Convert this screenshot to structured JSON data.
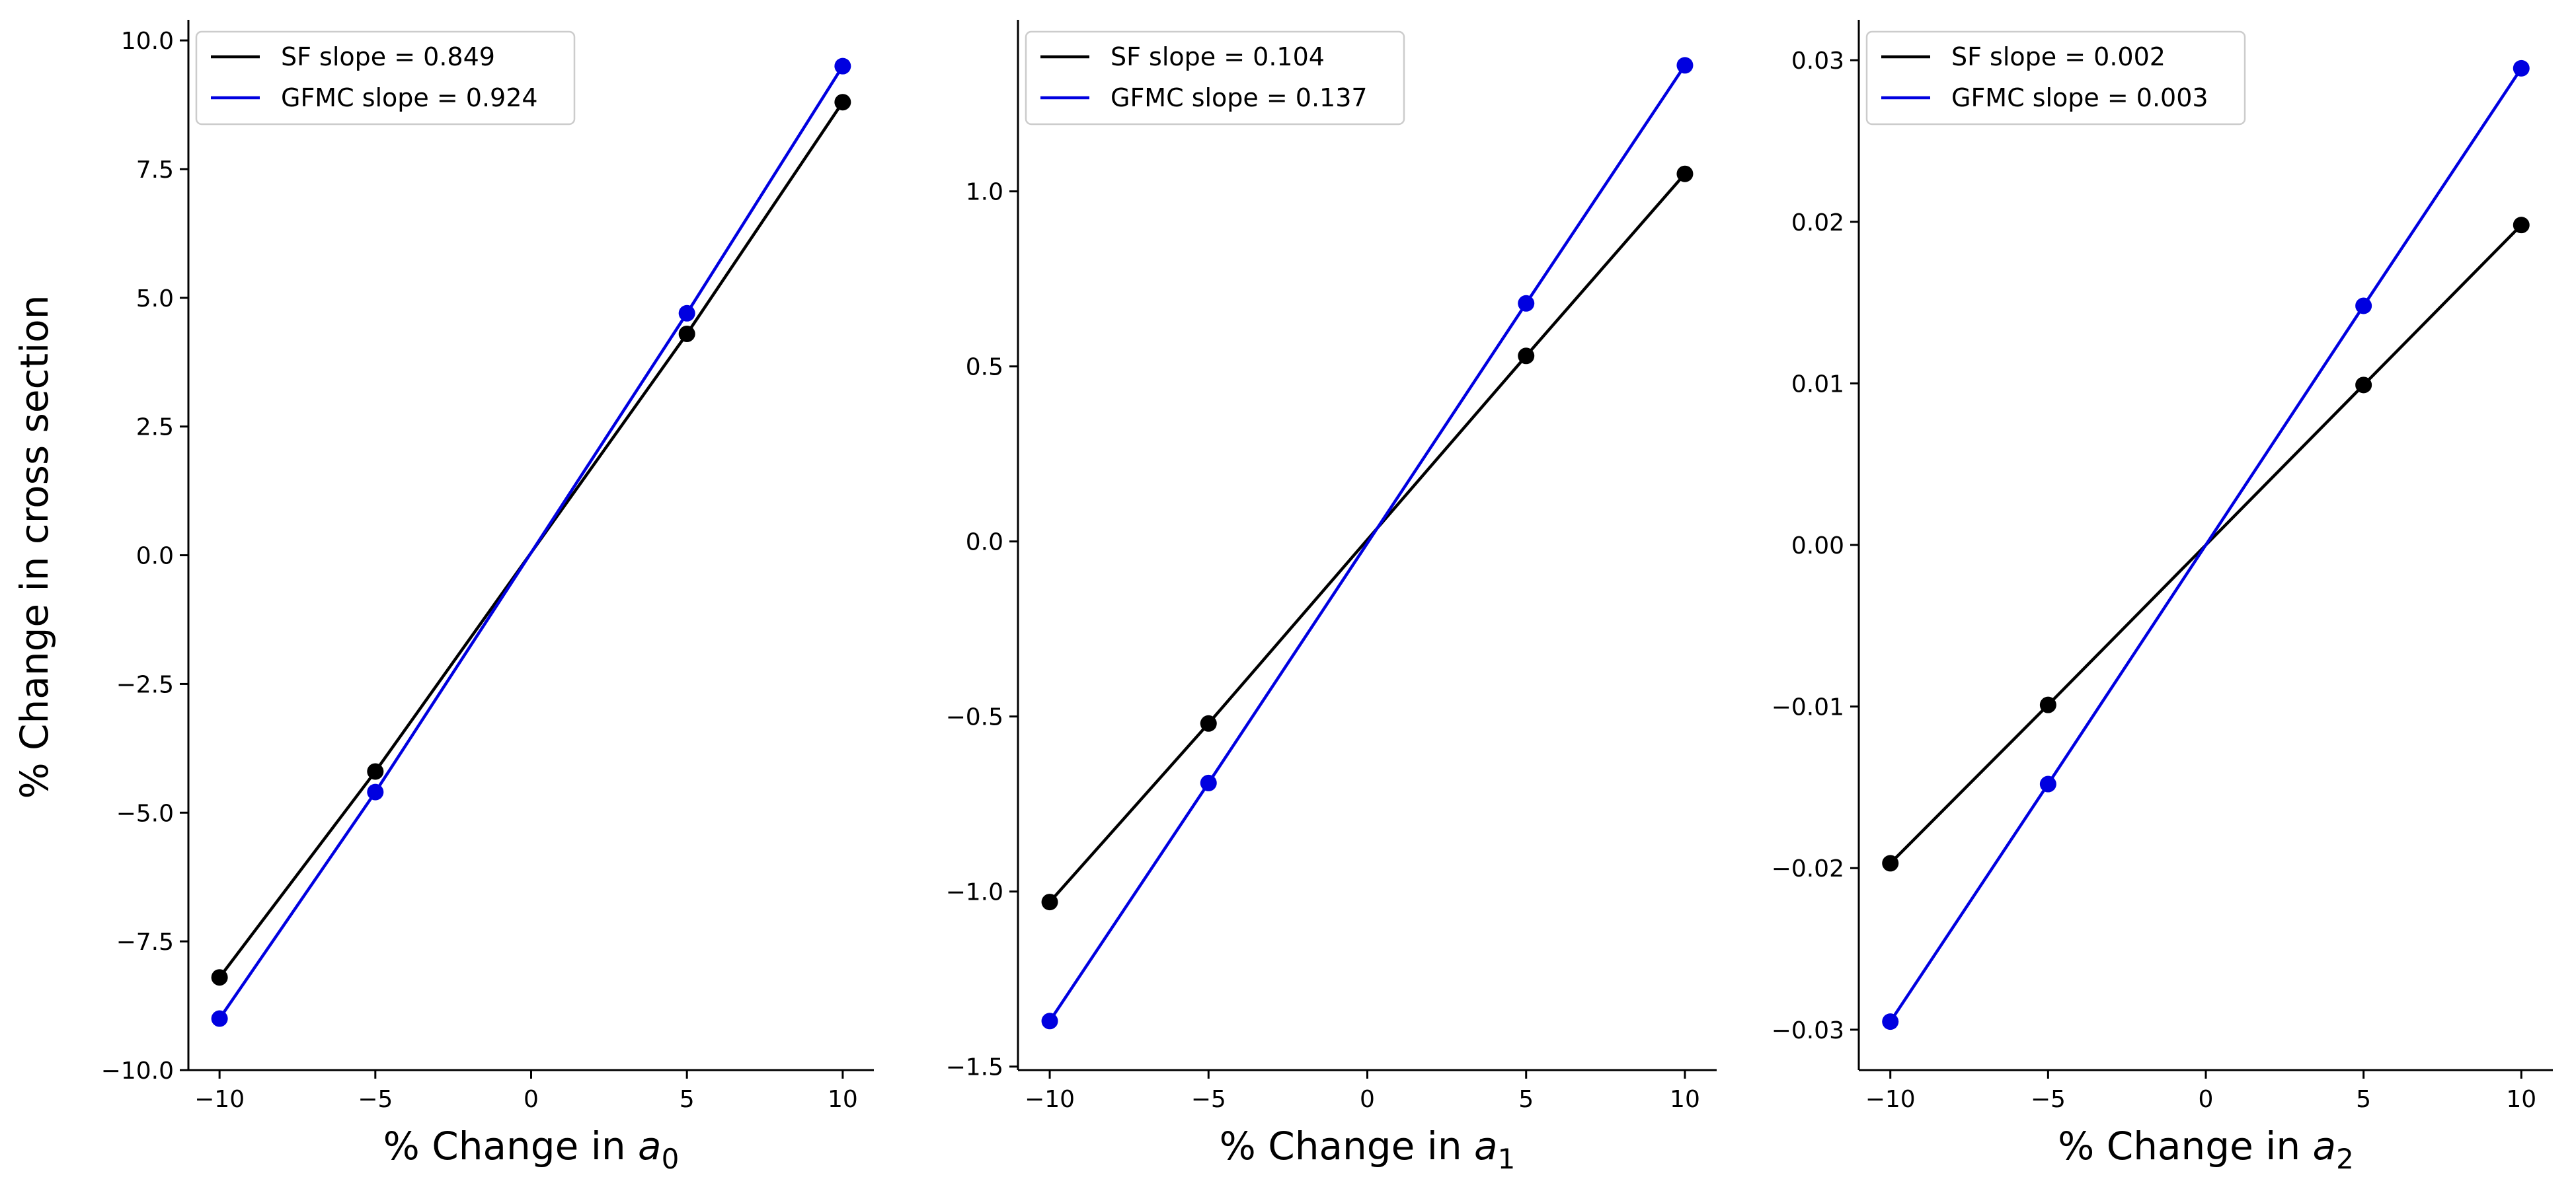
{
  "figure": {
    "ylabel": "% Change in cross section",
    "colors": {
      "SF": "#000000",
      "GFMC": "#0000e0"
    }
  },
  "chart_data": [
    {
      "type": "line",
      "xlabel_prefix": "% Change in ",
      "xlabel_var": "a",
      "xlabel_sub": "0",
      "x": [
        -10,
        -5,
        5,
        10
      ],
      "xticks": [
        -10,
        -5,
        0,
        5,
        10
      ],
      "xlim": [
        -11,
        11
      ],
      "ylim": [
        -10,
        10.4
      ],
      "yticks": [
        -10.0,
        -7.5,
        -5.0,
        -2.5,
        0.0,
        2.5,
        5.0,
        7.5,
        10.0
      ],
      "ytick_labels": [
        "−10.0",
        "−7.5",
        "−5.0",
        "−2.5",
        "0.0",
        "2.5",
        "5.0",
        "7.5",
        "10.0"
      ],
      "xtick_labels": [
        "−10",
        "−5",
        "0",
        "5",
        "10"
      ],
      "legend": "top-left",
      "series": [
        {
          "name": "SF slope = 0.849",
          "key": "SF",
          "values": [
            -8.2,
            -4.2,
            4.3,
            8.8
          ]
        },
        {
          "name": "GFMC slope = 0.924",
          "key": "GFMC",
          "values": [
            -9.0,
            -4.6,
            4.7,
            9.5
          ]
        }
      ]
    },
    {
      "type": "line",
      "xlabel_prefix": "% Change in ",
      "xlabel_var": "a",
      "xlabel_sub": "1",
      "x": [
        -10,
        -5,
        5,
        10
      ],
      "xticks": [
        -10,
        -5,
        0,
        5,
        10
      ],
      "xlim": [
        -11,
        11
      ],
      "ylim": [
        -1.51,
        1.49
      ],
      "yticks": [
        -1.5,
        -1.0,
        -0.5,
        0.0,
        0.5,
        1.0
      ],
      "ytick_labels": [
        "−1.5",
        "−1.0",
        "−0.5",
        "0.0",
        "0.5",
        "1.0"
      ],
      "xtick_labels": [
        "−10",
        "−5",
        "0",
        "5",
        "10"
      ],
      "legend": "top-left",
      "series": [
        {
          "name": "SF slope = 0.104",
          "key": "SF",
          "values": [
            -1.03,
            -0.52,
            0.53,
            1.05
          ]
        },
        {
          "name": "GFMC slope = 0.137",
          "key": "GFMC",
          "values": [
            -1.37,
            -0.69,
            0.68,
            1.36
          ]
        }
      ]
    },
    {
      "type": "line",
      "xlabel_prefix": "% Change in ",
      "xlabel_var": "a",
      "xlabel_sub": "2",
      "x": [
        -10,
        -5,
        5,
        10
      ],
      "xticks": [
        -10,
        -5,
        0,
        5,
        10
      ],
      "xlim": [
        -11,
        11
      ],
      "ylim": [
        -0.0325,
        0.0325
      ],
      "yticks": [
        -0.03,
        -0.02,
        -0.01,
        0.0,
        0.01,
        0.02,
        0.03
      ],
      "ytick_labels": [
        "−0.03",
        "−0.02",
        "−0.01",
        "0.00",
        "0.01",
        "0.02",
        "0.03"
      ],
      "xtick_labels": [
        "−10",
        "−5",
        "0",
        "5",
        "10"
      ],
      "legend": "top-left",
      "series": [
        {
          "name": "SF slope = 0.002",
          "key": "SF",
          "values": [
            -0.0197,
            -0.0099,
            0.0099,
            0.0198
          ]
        },
        {
          "name": "GFMC slope = 0.003",
          "key": "GFMC",
          "values": [
            -0.0295,
            -0.0148,
            0.0148,
            0.0295
          ]
        }
      ]
    }
  ]
}
